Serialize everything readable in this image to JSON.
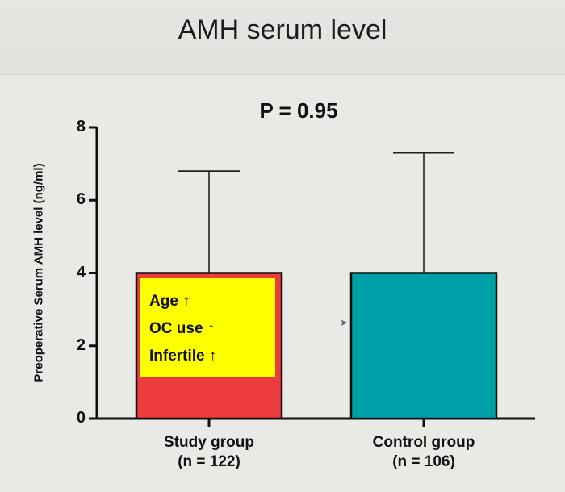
{
  "slide": {
    "title": "AMH serum level"
  },
  "chart_data": {
    "type": "bar",
    "title": "P = 0.95",
    "ylabel": "Preoperative Serum AMH level (ng/ml)",
    "xlabel": "",
    "ylim": [
      0,
      8
    ],
    "yticks": [
      0,
      2,
      4,
      6,
      8
    ],
    "categories": [
      "Study group\n(n = 122)",
      "Control group\n(n = 106)"
    ],
    "category_lines": [
      [
        "Study group",
        "(n = 122)"
      ],
      [
        "Control group",
        "(n = 106)"
      ]
    ],
    "values": [
      4.0,
      4.0
    ],
    "error_upper": [
      6.8,
      7.3
    ],
    "colors": [
      "#ee3b3b",
      "#00a0a8"
    ],
    "annotation": {
      "lines": [
        "Age ↑",
        "OC use ↑",
        "Infertile ↑"
      ],
      "background": "#ffff00"
    },
    "grid": false
  }
}
